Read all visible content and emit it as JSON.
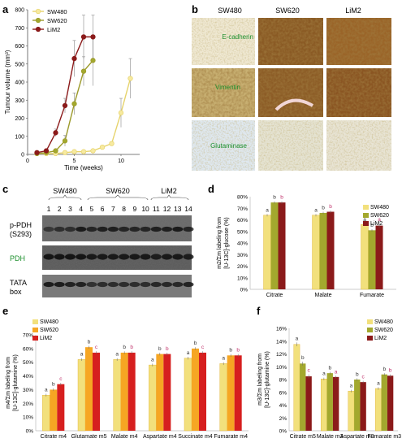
{
  "panels": {
    "a": {
      "letter": "a"
    },
    "b": {
      "letter": "b"
    },
    "c": {
      "letter": "c"
    },
    "d": {
      "letter": "d"
    },
    "e": {
      "letter": "e"
    },
    "f": {
      "letter": "f"
    }
  },
  "colors": {
    "sw480": "#f2e07c",
    "sw620": "#a3a82e",
    "lim2": "#8b1a1a",
    "e_sw620": "#f6a623",
    "e_lim2": "#d61f1f",
    "pink": "#ff3f7d"
  },
  "chart_data": [
    {
      "panel": "a",
      "type": "line",
      "xlabel": "Time (weeks)",
      "ylabel": "Tumour volume (mm³)",
      "xlim": [
        0,
        12
      ],
      "ylim": [
        0,
        800
      ],
      "xticks": [
        "0",
        "5",
        "10"
      ],
      "yticks": [
        "0",
        "100",
        "200",
        "300",
        "400",
        "500",
        "600",
        "700",
        "800"
      ],
      "legend_position": "top-left",
      "series": [
        {
          "name": "SW480",
          "x": [
            1,
            2,
            3,
            4,
            5,
            6,
            7,
            8,
            9,
            10,
            11
          ],
          "y": [
            5,
            5,
            5,
            10,
            15,
            15,
            20,
            40,
            60,
            230,
            420
          ],
          "err": [
            0,
            0,
            0,
            0,
            0,
            0,
            0,
            0,
            10,
            80,
            110
          ]
        },
        {
          "name": "SW620",
          "x": [
            1,
            2,
            3,
            4,
            5,
            6,
            7
          ],
          "y": [
            5,
            10,
            20,
            75,
            280,
            460,
            520
          ],
          "err": [
            0,
            0,
            10,
            30,
            60,
            80,
            140
          ]
        },
        {
          "name": "LiM2",
          "x": [
            1,
            2,
            3,
            4,
            5,
            6,
            7
          ],
          "y": [
            10,
            20,
            120,
            270,
            530,
            650,
            650
          ],
          "err": [
            0,
            0,
            20,
            40,
            100,
            120,
            120
          ]
        }
      ]
    },
    {
      "panel": "d",
      "type": "bar",
      "ylabel": "m2/Σm labeling from [U-13C]-glucose (%)",
      "ylim": [
        0,
        80
      ],
      "yticks": [
        "0%",
        "10%",
        "20%",
        "30%",
        "40%",
        "50%",
        "60%",
        "70%",
        "80%"
      ],
      "categories": [
        "Citrate",
        "Malate",
        "Fumarate"
      ],
      "series": [
        {
          "name": "SW480",
          "values": [
            64,
            64,
            56
          ],
          "err": [
            1,
            1,
            1
          ],
          "letters": [
            "a",
            "a",
            "a"
          ]
        },
        {
          "name": "SW620",
          "values": [
            75,
            66,
            51
          ],
          "err": [
            1,
            1,
            1
          ],
          "letters": [
            "b",
            "b",
            "b"
          ]
        },
        {
          "name": "LiM2",
          "values": [
            75,
            67,
            55
          ],
          "err": [
            1,
            1,
            2
          ],
          "letters": [
            "b",
            "b",
            "a"
          ]
        }
      ]
    },
    {
      "panel": "e",
      "type": "bar",
      "ylabel": "m4/Σm labeling from [U-13C]-glutamine (%)",
      "ylim": [
        0,
        70
      ],
      "yticks": [
        "0%",
        "10%",
        "20%",
        "30%",
        "40%",
        "50%",
        "60%",
        "70%"
      ],
      "categories": [
        "Citrate m4",
        "Glutamate m5",
        "Malate m4",
        "Aspartate m4",
        "Succinate m4",
        "Fumarate m4"
      ],
      "series": [
        {
          "name": "SW480",
          "values": [
            26,
            52,
            52,
            48,
            53,
            49
          ],
          "err": [
            1,
            1,
            1,
            1,
            1,
            1
          ],
          "letters": [
            "a",
            "a",
            "a",
            "a",
            "a",
            "a"
          ]
        },
        {
          "name": "SW620",
          "values": [
            30,
            61,
            57,
            56,
            60,
            55
          ],
          "err": [
            1,
            1,
            1,
            1,
            1,
            1
          ],
          "letters": [
            "b",
            "b",
            "b",
            "b",
            "b",
            "b"
          ]
        },
        {
          "name": "LiM2",
          "values": [
            34,
            57,
            57,
            56,
            57,
            55
          ],
          "err": [
            1,
            1,
            1,
            1,
            1,
            1
          ],
          "letters": [
            "c",
            "c",
            "b",
            "b",
            "c",
            "b"
          ]
        }
      ]
    },
    {
      "panel": "f",
      "type": "bar",
      "ylabel": "m3/Σm labeling from [U-13C]-glutamine (%)",
      "ylim": [
        0,
        16
      ],
      "yticks": [
        "0%",
        "2%",
        "4%",
        "6%",
        "8%",
        "10%",
        "12%",
        "14%",
        "16%"
      ],
      "categories": [
        "Citrate m5",
        "Malate m3",
        "Aspartate m3",
        "Fumarate m3"
      ],
      "series": [
        {
          "name": "SW480",
          "values": [
            13.5,
            8.1,
            6.2,
            6.6
          ],
          "err": [
            0.3,
            0.2,
            0.2,
            0.2
          ],
          "letters": [
            "a",
            "a",
            "a",
            "a"
          ]
        },
        {
          "name": "SW620",
          "values": [
            10.5,
            9.0,
            8.0,
            8.8
          ],
          "err": [
            0.3,
            0.2,
            0.2,
            0.2
          ],
          "letters": [
            "b",
            "b",
            "b",
            "b"
          ]
        },
        {
          "name": "LiM2",
          "values": [
            8.5,
            8.4,
            7.6,
            8.6
          ],
          "err": [
            0.3,
            0.2,
            0.2,
            0.2
          ],
          "letters": [
            "c",
            "a",
            "c",
            "b"
          ]
        }
      ]
    }
  ],
  "ihc": {
    "columns": [
      "SW480",
      "SW620",
      "LiM2"
    ],
    "rows": [
      "E-cadherin",
      "Vimentin",
      "Glutaminase"
    ]
  },
  "western": {
    "groups": [
      "SW480",
      "SW620",
      "LiM2"
    ],
    "lanes": [
      "1",
      "2",
      "3",
      "4",
      "5",
      "6",
      "7",
      "8",
      "9",
      "10",
      "11",
      "12",
      "13",
      "14"
    ],
    "blots": [
      {
        "label_line1": "p-PDH",
        "label_line2": "(S293)"
      },
      {
        "label_line1": "PDH",
        "label_line2": ""
      },
      {
        "label_line1": "TATA",
        "label_line2": "box"
      }
    ]
  }
}
